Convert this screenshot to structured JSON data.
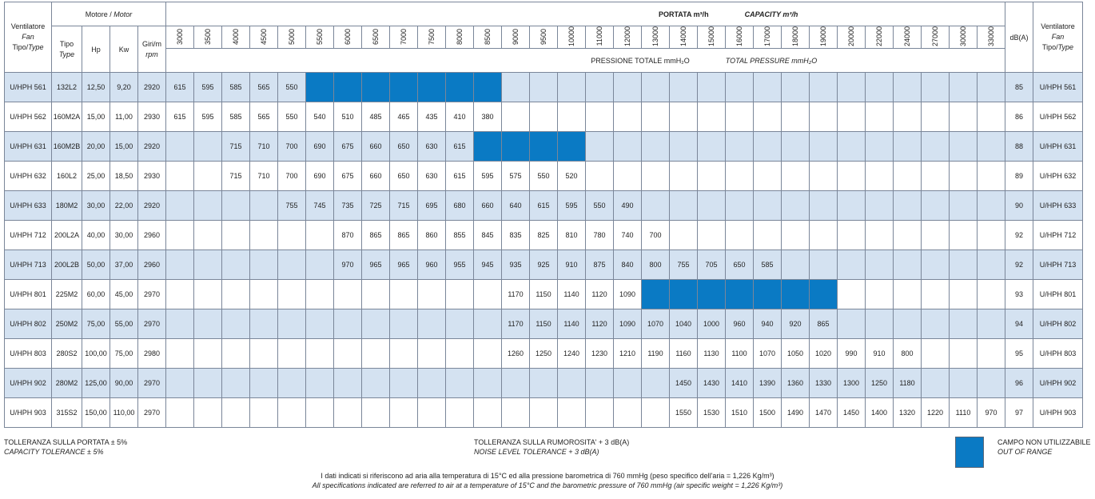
{
  "header": {
    "fan_label": "Ventilatore",
    "fan_label_en": "Fan",
    "tipo_type_it": "Tipo/",
    "tipo_type_en": "Type",
    "motor_title": "Motore / ",
    "motor_title_en": "Motor",
    "tipo": "Tipo",
    "type_en": "Type",
    "hp": "Hp",
    "kw": "Kw",
    "giri": "Giri/m",
    "rpm": "rpm",
    "portata": "PORTATA m³/h",
    "capacity": "CAPACITY m³/h",
    "pressione": "PRESSIONE TOTALE mmH₂O",
    "total_pressure": "TOTAL PRESSURE  mmH₂O",
    "db": "dB(A)"
  },
  "flows": [
    "3000",
    "3500",
    "4000",
    "4500",
    "5000",
    "5500",
    "6000",
    "6500",
    "7000",
    "7500",
    "8000",
    "8500",
    "9000",
    "9500",
    "10000",
    "11000",
    "12000",
    "13000",
    "14000",
    "15000",
    "16000",
    "17000",
    "18000",
    "19000",
    "20000",
    "22000",
    "24000",
    "27000",
    "30000",
    "33000"
  ],
  "rows": [
    {
      "type": "U/HPH 561",
      "motor": "132L2",
      "hp": "12,50",
      "kw": "9,20",
      "rpm": "2920",
      "db": "85",
      "vals": [
        "615",
        "595",
        "585",
        "565",
        "550",
        "#",
        "#",
        "#",
        "#",
        "#",
        "#",
        "#",
        "",
        "",
        "",
        "",
        "",
        "",
        "",
        "",
        "",
        "",
        "",
        "",
        "",
        "",
        "",
        "",
        "",
        ""
      ]
    },
    {
      "type": "U/HPH 562",
      "motor": "160M2A",
      "hp": "15,00",
      "kw": "11,00",
      "rpm": "2930",
      "db": "86",
      "vals": [
        "615",
        "595",
        "585",
        "565",
        "550",
        "540",
        "510",
        "485",
        "465",
        "435",
        "410",
        "380",
        "",
        "",
        "",
        "",
        "",
        "",
        "",
        "",
        "",
        "",
        "",
        "",
        "",
        "",
        "",
        "",
        "",
        ""
      ]
    },
    {
      "type": "U/HPH 631",
      "motor": "160M2B",
      "hp": "20,00",
      "kw": "15,00",
      "rpm": "2920",
      "db": "88",
      "vals": [
        "",
        "",
        "715",
        "710",
        "700",
        "690",
        "675",
        "660",
        "650",
        "630",
        "615",
        "#",
        "#",
        "#",
        "#",
        "",
        "",
        "",
        "",
        "",
        "",
        "",
        "",
        "",
        "",
        "",
        "",
        "",
        "",
        ""
      ]
    },
    {
      "type": "U/HPH 632",
      "motor": "160L2",
      "hp": "25,00",
      "kw": "18,50",
      "rpm": "2930",
      "db": "89",
      "vals": [
        "",
        "",
        "715",
        "710",
        "700",
        "690",
        "675",
        "660",
        "650",
        "630",
        "615",
        "595",
        "575",
        "550",
        "520",
        "",
        "",
        "",
        "",
        "",
        "",
        "",
        "",
        "",
        "",
        "",
        "",
        "",
        "",
        ""
      ]
    },
    {
      "type": "U/HPH 633",
      "motor": "180M2",
      "hp": "30,00",
      "kw": "22,00",
      "rpm": "2920",
      "db": "90",
      "vals": [
        "",
        "",
        "",
        "",
        "755",
        "745",
        "735",
        "725",
        "715",
        "695",
        "680",
        "660",
        "640",
        "615",
        "595",
        "550",
        "490",
        "",
        "",
        "",
        "",
        "",
        "",
        "",
        "",
        "",
        "",
        "",
        "",
        ""
      ]
    },
    {
      "type": "U/HPH 712",
      "motor": "200L2A",
      "hp": "40,00",
      "kw": "30,00",
      "rpm": "2960",
      "db": "92",
      "vals": [
        "",
        "",
        "",
        "",
        "",
        "",
        "870",
        "865",
        "865",
        "860",
        "855",
        "845",
        "835",
        "825",
        "810",
        "780",
        "740",
        "700",
        "",
        "",
        "",
        "",
        "",
        "",
        "",
        "",
        "",
        "",
        "",
        ""
      ]
    },
    {
      "type": "U/HPH 713",
      "motor": "200L2B",
      "hp": "50,00",
      "kw": "37,00",
      "rpm": "2960",
      "db": "92",
      "vals": [
        "",
        "",
        "",
        "",
        "",
        "",
        "970",
        "965",
        "965",
        "960",
        "955",
        "945",
        "935",
        "925",
        "910",
        "875",
        "840",
        "800",
        "755",
        "705",
        "650",
        "585",
        "",
        "",
        "",
        "",
        "",
        "",
        "",
        ""
      ]
    },
    {
      "type": "U/HPH 801",
      "motor": "225M2",
      "hp": "60,00",
      "kw": "45,00",
      "rpm": "2970",
      "db": "93",
      "vals": [
        "",
        "",
        "",
        "",
        "",
        "",
        "",
        "",
        "",
        "",
        "",
        "",
        "1170",
        "1150",
        "1140",
        "1120",
        "1090",
        "#",
        "#",
        "#",
        "#",
        "#",
        "#",
        "#",
        "",
        "",
        "",
        "",
        "",
        ""
      ]
    },
    {
      "type": "U/HPH 802",
      "motor": "250M2",
      "hp": "75,00",
      "kw": "55,00",
      "rpm": "2970",
      "db": "94",
      "vals": [
        "",
        "",
        "",
        "",
        "",
        "",
        "",
        "",
        "",
        "",
        "",
        "",
        "1170",
        "1150",
        "1140",
        "1120",
        "1090",
        "1070",
        "1040",
        "1000",
        "960",
        "940",
        "920",
        "865",
        "",
        "",
        "",
        "",
        "",
        ""
      ]
    },
    {
      "type": "U/HPH 803",
      "motor": "280S2",
      "hp": "100,00",
      "kw": "75,00",
      "rpm": "2980",
      "db": "95",
      "vals": [
        "",
        "",
        "",
        "",
        "",
        "",
        "",
        "",
        "",
        "",
        "",
        "",
        "1260",
        "1250",
        "1240",
        "1230",
        "1210",
        "1190",
        "1160",
        "1130",
        "1100",
        "1070",
        "1050",
        "1020",
        "990",
        "910",
        "800",
        "",
        "",
        ""
      ]
    },
    {
      "type": "U/HPH 902",
      "motor": "280M2",
      "hp": "125,00",
      "kw": "90,00",
      "rpm": "2970",
      "db": "96",
      "vals": [
        "",
        "",
        "",
        "",
        "",
        "",
        "",
        "",
        "",
        "",
        "",
        "",
        "",
        "",
        "",
        "",
        "",
        "",
        "1450",
        "1430",
        "1410",
        "1390",
        "1360",
        "1330",
        "1300",
        "1250",
        "1180",
        "",
        "",
        ""
      ]
    },
    {
      "type": "U/HPH 903",
      "motor": "315S2",
      "hp": "150,00",
      "kw": "110,00",
      "rpm": "2970",
      "db": "97",
      "vals": [
        "",
        "",
        "",
        "",
        "",
        "",
        "",
        "",
        "",
        "",
        "",
        "",
        "",
        "",
        "",
        "",
        "",
        "",
        "1550",
        "1530",
        "1510",
        "1500",
        "1490",
        "1470",
        "1450",
        "1400",
        "1320",
        "1220",
        "1110",
        "970"
      ]
    }
  ],
  "footer": {
    "tol_portata": "TOLLERANZA SULLA PORTATA ± 5%",
    "tol_capacity": "CAPACITY TOLERANCE ± 5%",
    "tol_rumorosita": "TOLLERANZA SULLA RUMOROSITA' + 3 dB(A)",
    "tol_noise": "NOISE LEVEL TOLERANCE + 3 dB(A)",
    "campo": "CAMPO NON UTILIZZABILE",
    "out_of_range": "OUT OF RANGE",
    "note_it": "I dati indicati si riferiscono ad aria alla temperatura di 15°C ed alla pressione barometrica di 760 mmHg (peso specifico dell'aria = 1,226 Kg/m³)",
    "note_en": "All specifications indicated are referred to air at a temperature of 15°C and the barometric pressure of 760 mmHg (air specific weight  = 1,226 Kg/m³)"
  },
  "colors": {
    "out_of_range": "#0a7ac4",
    "row_shade": "#d4e2f1",
    "grid": "#7a8699"
  }
}
